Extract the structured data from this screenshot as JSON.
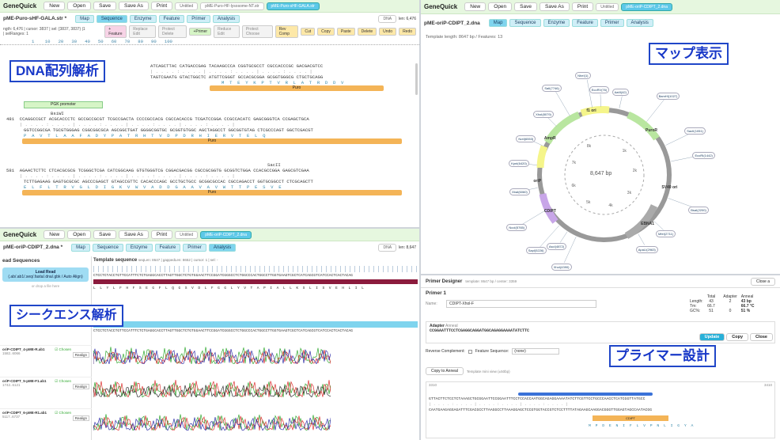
{
  "app": "GeneQuick",
  "toolbar": [
    "New",
    "Open",
    "Save",
    "Save As",
    "Print"
  ],
  "p1": {
    "tabs": [
      "Untitled",
      "pME-Puro-HF-lysosome-NT.str",
      "pME-Puro-sHF-GALA.str"
    ],
    "views": [
      "Map",
      "Sequence",
      "Enzyme",
      "Feature",
      "Primer",
      "Analysis"
    ],
    "file": "pME-Puro-sHF-GALA.str *",
    "dna": "DNA",
    "len": "len: 6,476",
    "info1": "ngth: 6,476 | cursor: 3837 | sel: [3837, 3837) |1",
    "info2": "| selRanges: 1",
    "tools": [
      "+ Feature",
      "Replace\nEdit",
      "Protect\nDelete",
      "+Primer",
      "Reduce\nEdit",
      "Protect\nChoose",
      "Rev\nComp",
      "Cut",
      "Copy",
      "Paste",
      "Delete",
      "Undo",
      "Redo"
    ],
    "ruler": "1    10   20   30   40   50   60   70   80   90   100",
    "rows": [
      {
        "pos": "",
        "top": "ATCAGCTTAC CATGACCGAG TACAAGCCCA CGGTGCGCCT CGCCACCCGC GACGACGTCC",
        "bot": "TAGTCGAATG GTACTGGCTC ATGTTCGGGT GCCACGCGGA GCGGTGGGCG CTGCTGCAGG",
        "aa": "M  T  E  Y  K  P  T  V  R  L  A  T  R  D  D  V",
        "feat": "Puro"
      },
      {
        "pos": "481",
        "enz": "BsiWI",
        "top": "CCAGGCCGCT ACGCACCCTC GCCGCCGCGT TCGCCGACTA CCCCGCCACG CGCCACACCG TCGATCCGGA CCGCCACATC GAGCGGGTCA CCGAGCTGCA",
        "bot": "GGTCCGGCGA TGCGTGGGAG CGGCGGCGCA AGCGGCTGAT GGGGCGGTGC GCGGTGTGGC AGCTAGGCCT GGCGGTGTAG CTCGCCCAGT GGCTCGACGT",
        "aa": "P  A  V  T  L  A  A  F  A  D  Y  P  A  T  R  H  T  V  D  P  D  R  H  I  E  R  V  T  E  L  Q",
        "feat": "Puro",
        "pgk": "PGK promoter"
      },
      {
        "pos": "581",
        "enz": "SacII",
        "top": "AGAACTCTTC CTCACGCGCG TCGGGCTCGA CATCGGCAAG GTGTGGGTCG CGGACGACGG CGCCGCGGTG GCGGTCTGGA CCACGCCGGA GAGCGTCGAA",
        "bot": "TCTTGAGAAG GAGTGCGCGC AGCCCGAGCT GTAGCCGTTC CACACCCAGC GCCTGCTGCC GCGGCGCCAC CGCCAGACCT GGTGCGGCCT CTCGCAGCTT",
        "aa": "E  L  F  L  T  R  V  G  L  D  I  G  K  V  W  V  A  D  D  G  A  A  V  A  V  W  T  T  P  E  S  V  E",
        "feat": "Puro"
      }
    ],
    "callout": "DNA配列解析"
  },
  "p2": {
    "tabs": [
      "Untitled",
      "pME-oriP-CDIPT_2.dna"
    ],
    "views": [
      "Map",
      "Sequence",
      "Enzyme",
      "Feature",
      "Primer",
      "Analysis"
    ],
    "title": "pME-oriP-CDIPT_2.dna",
    "info": "Template length: 8647 bp / Features: 13",
    "center": "8,647 bp",
    "ticks": [
      "1k",
      "2k",
      "3k",
      "4k",
      "5k",
      "6k",
      "7k",
      "8k"
    ],
    "labels": [
      "SalI(7746)",
      "XhoI(8079)",
      "NheI(1)",
      "EcoRV(76)",
      "BamHI(1027)",
      "AatII(42)",
      "SacII(1051)",
      "NotI(6553)",
      "EcoRI(1442)",
      "KpnI(6420)",
      "BsaI(2200)",
      "XbaI(6060)",
      "NcoI(5765)",
      "MfeI(2711)",
      "SapI(5226)",
      "AscI(4872)",
      "XhoI(4390)",
      "ApaLI(2963)"
    ],
    "feats": [
      "AmpR",
      "f1 ori",
      "PuroR",
      "oriP",
      "CDIPT",
      "SV40 ori",
      "EBNA1"
    ],
    "callout": "マップ表示"
  },
  "p3": {
    "tabs": [
      "Untitled",
      "pME-oriP-CDIPT_2.dna"
    ],
    "views": [
      "Map",
      "Sequence",
      "Enzyme",
      "Feature",
      "Primer",
      "Analysis"
    ],
    "file": "pME-oriP-CDIPT_2.dna *",
    "dna": "DNA",
    "len": "len: 8,647",
    "left_title": "ead Sequences",
    "load": "Load Read",
    "load_sub": "(.ab/.ab1/.seq/.fasta/.dna/.gbk / Auto Align)",
    "drop": "or drop a file here",
    "template_label": "Template sequence",
    "template_info": "seqLen: 8647 | gappedLen: 8652 | cursor: 1 | sel: -",
    "reads": [
      {
        "name": "oriP-CDIPT_4-pME-R.ab1",
        "sub": "1582..6066",
        "status": "Chosen",
        "action": "Realign"
      },
      {
        "name": "oriP-CDIPT_5-pME-F1.ab1",
        "sub": "1742..6121",
        "status": "Chosen",
        "action": "Realign"
      },
      {
        "name": "oriP-CDIPT_6-pME-R1.ab1",
        "sub": "5117..6737",
        "status": "Chosen",
        "action": "Realign"
      }
    ],
    "refseq": "CTCCTCTACCTGTTCCATTTCTCTGAGGCACCTTAGTTGGCTCTGTGGAACTTCCGGATCGGGCCTCTGGCCCACTGGCCTTGGTGAAGTCGCTCATCAGCGTCATCCACTCACTACAG",
    "aa": "L  L  Y  L  F  H  F  S  E  G  F  L  Q  G  S  V  D  L  F  G  G  L  Y  V  T  A  P  I  A  L  L  K  S  L  I  S  V  E  H  L  I  L",
    "callout": "シークエンス解析"
  },
  "p4": {
    "title": "Primer Designer",
    "sub": "template: 8647 bp / center: 3359",
    "close": "Close a",
    "primer": "Primer 1",
    "name_label": "Name:",
    "name_val": "CDIPT-Xhol-F",
    "stats_hdr": [
      "Total",
      "Adapter",
      "Anneal"
    ],
    "stats": [
      [
        "Length:",
        "43",
        "2",
        "43 bp"
      ],
      [
        "Tm:",
        "66.7",
        "",
        "66.7 °C"
      ],
      [
        "GC%:",
        "51",
        "0",
        "51 %"
      ]
    ],
    "adapter_label": "Adapter",
    "anneal_label": "Anneal",
    "seq": "CCGGAATTTCCTCGAGGCAGGATGGCAGAGGAAAATATCTTC",
    "update": "Update",
    "copy": "Copy",
    "close2": "Close",
    "revcomp": "Reverse Complement:",
    "featseq": "Feature Sequence:",
    "featsel": "(none)",
    "copy_anneal": "Copy to Anneal",
    "mini": "Template mini view (±50bp)",
    "pos_l": "3310",
    "pos_r": "3410",
    "mini_top": "GTTACTTCTCCTCTAAAGCTGCGGAATTCCGGAATTTCCTCCACCAATGGCAGAGGAAAATATCTTCGTTCCTGCCCAACCTCATCGGTTATGCC",
    "mini_bot": "CAATGAAGAGGAGATTTCGACGCCTTAAGGCCTTAAAGGAGCTCCGTGGTACCGTCTCCTTTTATAGAAGCAAGGACGGGTTGGAGTAGCCAATACGG",
    "aa": "M  P  D  E  N  I  F  L  V  P  N  L  I  G  Y  A",
    "feat": "CDIPT",
    "callout": "プライマー設計"
  }
}
